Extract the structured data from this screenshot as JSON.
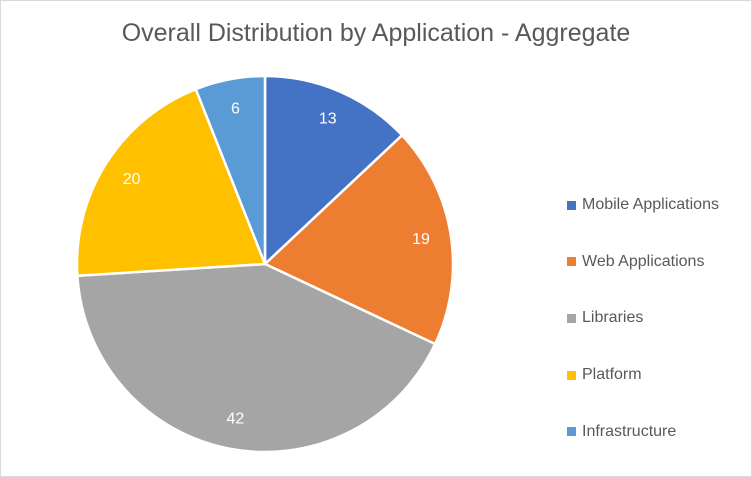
{
  "chart_data": {
    "type": "pie",
    "title": "Overall Distribution by Application - Aggregate",
    "categories": [
      "Mobile Applications",
      "Web Applications",
      "Libraries",
      "Platform",
      "Infrastructure"
    ],
    "values": [
      13,
      19,
      42,
      20,
      6
    ],
    "colors": [
      "#4472c4",
      "#ed7d31",
      "#a5a5a5",
      "#ffc000",
      "#5b9bd5"
    ],
    "data_labels": [
      "13",
      "19",
      "42",
      "20",
      "6"
    ],
    "legend_placement": "right"
  }
}
